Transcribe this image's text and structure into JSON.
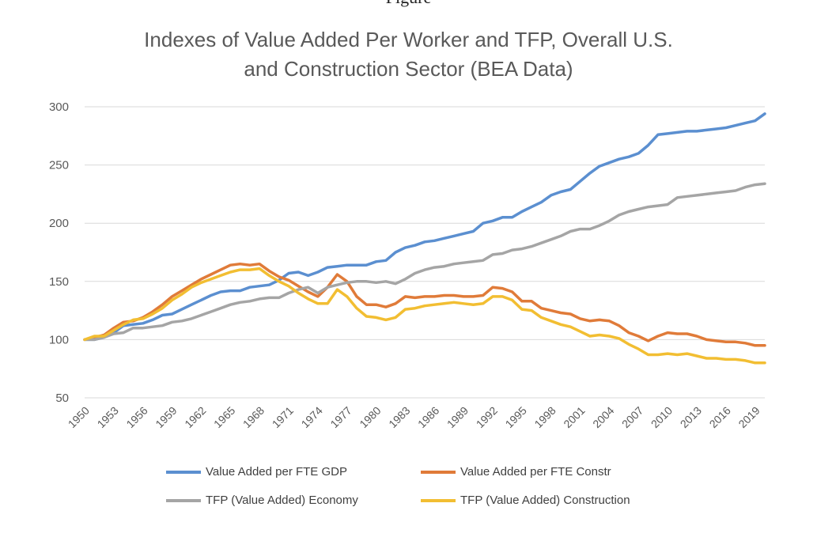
{
  "caption_top": "Figure",
  "chart_data": {
    "type": "line",
    "title_lines": [
      "Indexes of Value Added Per Worker and TFP, Overall U.S.",
      "and Construction Sector (BEA Data)"
    ],
    "ylim": [
      50,
      300
    ],
    "yticks": [
      50,
      100,
      150,
      200,
      250,
      300
    ],
    "x": [
      1950,
      1951,
      1952,
      1953,
      1954,
      1955,
      1956,
      1957,
      1958,
      1959,
      1960,
      1961,
      1962,
      1963,
      1964,
      1965,
      1966,
      1967,
      1968,
      1969,
      1970,
      1971,
      1972,
      1973,
      1974,
      1975,
      1976,
      1977,
      1978,
      1979,
      1980,
      1981,
      1982,
      1983,
      1984,
      1985,
      1986,
      1987,
      1988,
      1989,
      1990,
      1991,
      1992,
      1993,
      1994,
      1995,
      1996,
      1997,
      1998,
      1999,
      2000,
      2001,
      2002,
      2003,
      2004,
      2005,
      2006,
      2007,
      2008,
      2009,
      2010,
      2011,
      2012,
      2013,
      2014,
      2015,
      2016,
      2017,
      2018,
      2019,
      2020
    ],
    "xtick_labels": [
      "1950",
      "1953",
      "1956",
      "1959",
      "1962",
      "1965",
      "1968",
      "1971",
      "1974",
      "1977",
      "1980",
      "1983",
      "1986",
      "1989",
      "1992",
      "1995",
      "1998",
      "2001",
      "2004",
      "2007",
      "2010",
      "2013",
      "2016",
      "2019"
    ],
    "grid": true,
    "legend_position": "bottom",
    "series": [
      {
        "name": "Value Added per FTE GDP",
        "color": "#5b8fd0",
        "values": [
          100,
          100,
          102,
          106,
          112,
          113,
          114,
          117,
          121,
          122,
          126,
          130,
          134,
          138,
          141,
          142,
          142,
          145,
          146,
          147,
          151,
          157,
          158,
          155,
          158,
          162,
          163,
          164,
          164,
          164,
          167,
          168,
          175,
          179,
          181,
          184,
          185,
          187,
          189,
          191,
          193,
          200,
          202,
          205,
          205,
          210,
          214,
          218,
          224,
          227,
          229,
          236,
          243,
          249,
          252,
          255,
          257,
          260,
          267,
          276,
          277,
          278,
          279,
          279,
          280,
          281,
          282,
          284,
          286,
          288,
          294
        ]
      },
      {
        "name": "Value Added per FTE Constr",
        "color": "#e07b39",
        "values": [
          100,
          102,
          104,
          110,
          115,
          116,
          119,
          124,
          130,
          137,
          142,
          147,
          152,
          156,
          160,
          164,
          165,
          164,
          165,
          159,
          154,
          151,
          146,
          141,
          137,
          145,
          156,
          150,
          137,
          130,
          130,
          128,
          131,
          137,
          136,
          137,
          137,
          138,
          138,
          137,
          137,
          138,
          145,
          144,
          141,
          133,
          133,
          127,
          125,
          123,
          122,
          118,
          116,
          117,
          116,
          112,
          106,
          103,
          99,
          103,
          106,
          105,
          105,
          103,
          100,
          99,
          98,
          98,
          97,
          95,
          95
        ]
      },
      {
        "name": "TFP (Value Added) Economy",
        "color": "#a5a5a5",
        "values": [
          100,
          100,
          102,
          105,
          106,
          110,
          110,
          111,
          112,
          115,
          116,
          118,
          121,
          124,
          127,
          130,
          132,
          133,
          135,
          136,
          136,
          140,
          143,
          145,
          140,
          145,
          147,
          149,
          150,
          150,
          149,
          150,
          148,
          152,
          157,
          160,
          162,
          163,
          165,
          166,
          167,
          168,
          173,
          174,
          177,
          178,
          180,
          183,
          186,
          189,
          193,
          195,
          195,
          198,
          202,
          207,
          210,
          212,
          214,
          215,
          216,
          222,
          223,
          224,
          225,
          226,
          227,
          228,
          231,
          233,
          234
        ]
      },
      {
        "name": "TFP (Value Added) Construction",
        "color": "#f2be32",
        "values": [
          100,
          103,
          103,
          108,
          113,
          117,
          118,
          122,
          127,
          134,
          139,
          145,
          149,
          152,
          155,
          158,
          160,
          160,
          161,
          155,
          150,
          146,
          140,
          135,
          131,
          131,
          143,
          137,
          127,
          120,
          119,
          117,
          119,
          126,
          127,
          129,
          130,
          131,
          132,
          131,
          130,
          131,
          137,
          137,
          134,
          126,
          125,
          119,
          116,
          113,
          111,
          107,
          103,
          104,
          103,
          101,
          96,
          92,
          87,
          87,
          88,
          87,
          88,
          86,
          84,
          84,
          83,
          83,
          82,
          80,
          80
        ]
      }
    ]
  }
}
